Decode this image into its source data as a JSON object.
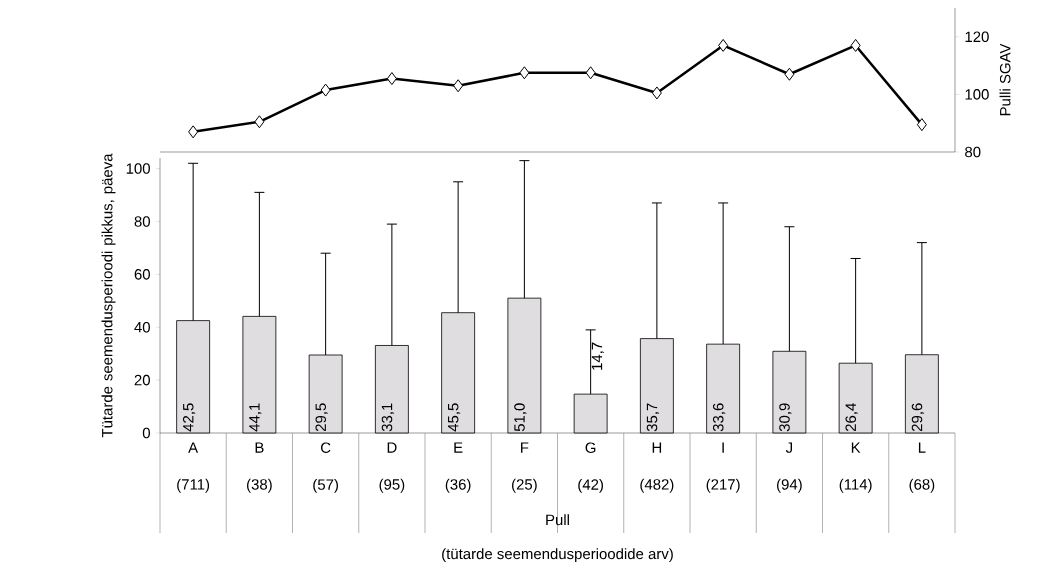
{
  "chart_data": [
    {
      "type": "line",
      "categories": [
        null,
        null,
        null,
        null,
        null,
        null,
        null,
        null,
        null,
        null,
        null,
        null
      ],
      "series": [
        {
          "color": "#000000",
          "values": [
            87,
            90.5,
            101.5,
            105.5,
            103,
            107.5,
            107.5,
            100.5,
            117,
            107,
            117,
            89.5
          ]
        }
      ],
      "ylim": [
        80,
        130
      ],
      "yticks": [
        80,
        100,
        120
      ],
      "ylabel": "Pulli SGAV",
      "marker": "diamond",
      "tick_labels": "y"
    },
    {
      "type": "bar",
      "categories": [
        "A (711)",
        "B (38)",
        "C (57)",
        "D (95)",
        "E (36)",
        "F (25)",
        "G (42)",
        "H (482)",
        "I (217)",
        "J (94)",
        "K (114)",
        "L (68)"
      ],
      "values": [
        42.5,
        44.1,
        29.5,
        33.1,
        45.5,
        51.0,
        14.7,
        35.7,
        33.6,
        30.9,
        26.4,
        29.6
      ],
      "errors": [
        [
          42.5,
          102
        ],
        [
          44.1,
          91
        ],
        [
          29.5,
          68
        ],
        [
          33.1,
          79
        ],
        [
          45.5,
          95
        ],
        [
          51.0,
          103
        ],
        [
          14.7,
          39
        ],
        [
          35.7,
          87
        ],
        [
          33.6,
          87
        ],
        [
          30.9,
          78
        ],
        [
          26.4,
          66
        ],
        [
          29.6,
          72
        ]
      ],
      "value_labels": [
        "42,5",
        "44,1",
        "29,5",
        "33,1",
        "45,5",
        "51,0",
        "14,7",
        "35,7",
        "33,6",
        "30,9",
        "26,4",
        "29,6"
      ],
      "color": "#e0dde0",
      "ylim": [
        0,
        104
      ],
      "yticks": [
        0,
        20,
        40,
        60,
        80,
        100
      ],
      "xlabel": "Pull",
      "ylabel": "Tütarde seemendusperioodi pikkus, päeva",
      "annotations": [
        "(tütarde seemendusperioodide arv)"
      ]
    }
  ]
}
